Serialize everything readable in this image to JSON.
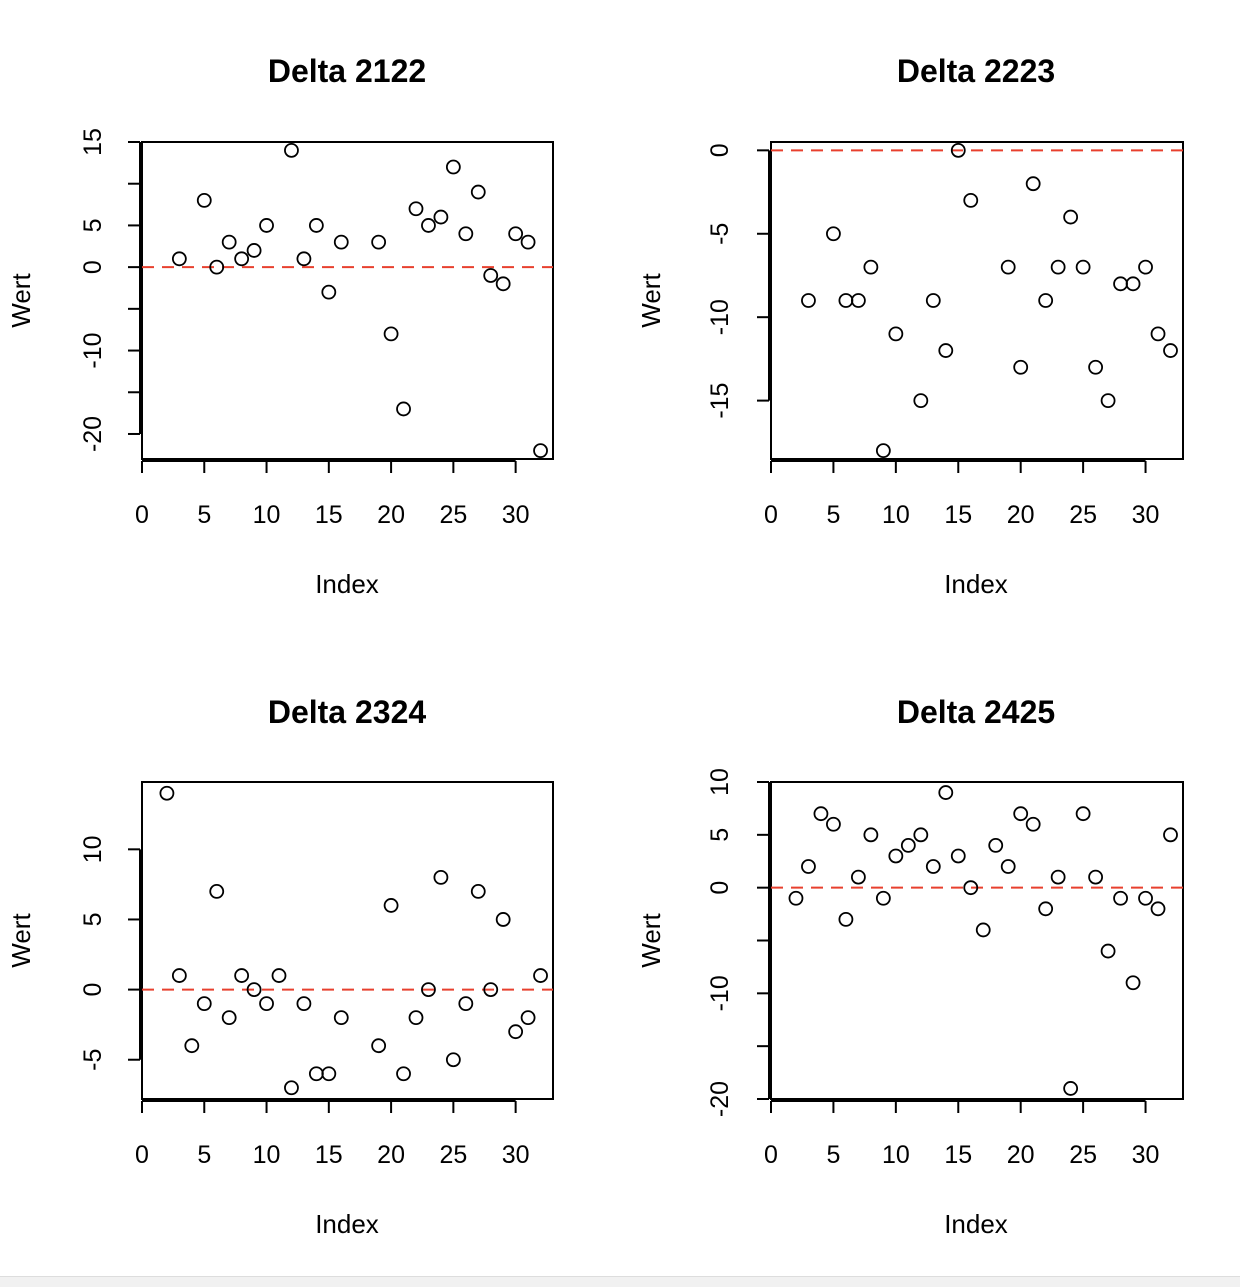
{
  "colors": {
    "point": "#000000",
    "reference_line": "#e8402e",
    "axis": "#000000",
    "background": "#ffffff"
  },
  "chart_data": [
    {
      "type": "scatter",
      "title": "Delta 2122",
      "xlabel": "Index",
      "ylabel": "Wert",
      "xlim": [
        0,
        33
      ],
      "ylim": [
        -23,
        15
      ],
      "xticks": [
        0,
        5,
        10,
        15,
        20,
        25,
        30
      ],
      "yticks": [
        -20,
        -15,
        -10,
        -5,
        0,
        5,
        10,
        15
      ],
      "ytick_labels": [
        "-20",
        "",
        "-10",
        "",
        "0",
        "5",
        "",
        "15"
      ],
      "reference_line": {
        "y": 0,
        "style": "dashed",
        "color": "#e8402e"
      },
      "x": [
        3,
        5,
        6,
        7,
        8,
        9,
        10,
        12,
        13,
        14,
        15,
        16,
        19,
        20,
        21,
        22,
        23,
        24,
        25,
        26,
        27,
        28,
        29,
        30,
        31,
        32
      ],
      "y": [
        1,
        8,
        0,
        3,
        1,
        2,
        5,
        14,
        1,
        5,
        -3,
        3,
        3,
        -8,
        -17,
        7,
        5,
        6,
        12,
        4,
        9,
        -1,
        -2,
        4,
        3,
        -22
      ]
    },
    {
      "type": "scatter",
      "title": "Delta 2223",
      "xlabel": "Index",
      "ylabel": "Wert",
      "xlim": [
        0,
        33
      ],
      "ylim": [
        -18.5,
        0.5
      ],
      "xticks": [
        0,
        5,
        10,
        15,
        20,
        25,
        30
      ],
      "yticks": [
        0,
        -5,
        -10,
        -15
      ],
      "ytick_labels": [
        "0",
        "-5",
        "-10",
        "-15"
      ],
      "reference_line": {
        "y": 0,
        "style": "dashed",
        "color": "#e8402e"
      },
      "x": [
        3,
        5,
        6,
        7,
        8,
        9,
        10,
        12,
        13,
        14,
        15,
        16,
        19,
        20,
        21,
        22,
        23,
        24,
        25,
        26,
        27,
        28,
        29,
        30,
        31,
        32
      ],
      "y": [
        -9,
        -5,
        -9,
        -9,
        -7,
        -18,
        -11,
        -15,
        -9,
        -12,
        0,
        -3,
        -7,
        -13,
        -2,
        -9,
        -7,
        -4,
        -7,
        -13,
        -15,
        -8,
        -8,
        -7,
        -11,
        -12
      ]
    },
    {
      "type": "scatter",
      "title": "Delta 2324",
      "xlabel": "Index",
      "ylabel": "Wert",
      "xlim": [
        0,
        33
      ],
      "ylim": [
        -7.8,
        14.8
      ],
      "xticks": [
        0,
        5,
        10,
        15,
        20,
        25,
        30
      ],
      "yticks": [
        -5,
        0,
        5,
        10
      ],
      "ytick_labels": [
        "-5",
        "0",
        "5",
        "10"
      ],
      "reference_line": {
        "y": 0,
        "style": "dashed",
        "color": "#e8402e"
      },
      "x": [
        2,
        3,
        4,
        5,
        6,
        7,
        8,
        9,
        10,
        11,
        12,
        13,
        14,
        15,
        16,
        19,
        20,
        21,
        22,
        23,
        24,
        25,
        26,
        27,
        28,
        29,
        30,
        31,
        32
      ],
      "y": [
        14,
        1,
        -4,
        -1,
        7,
        -2,
        1,
        0,
        -1,
        1,
        -7,
        -1,
        -6,
        -6,
        -2,
        -4,
        6,
        -6,
        -2,
        0,
        8,
        -5,
        -1,
        7,
        0,
        5,
        -3,
        -2,
        1
      ]
    },
    {
      "type": "scatter",
      "title": "Delta 2425",
      "xlabel": "Index",
      "ylabel": "Wert",
      "xlim": [
        0,
        33
      ],
      "ylim": [
        -20,
        10
      ],
      "xticks": [
        0,
        5,
        10,
        15,
        20,
        25,
        30
      ],
      "yticks": [
        -20,
        -15,
        -10,
        -5,
        0,
        5,
        10
      ],
      "ytick_labels": [
        "-20",
        "",
        "-10",
        "",
        "0",
        "5",
        "10"
      ],
      "reference_line": {
        "y": 0,
        "style": "dashed",
        "color": "#e8402e"
      },
      "x": [
        2,
        3,
        4,
        5,
        6,
        7,
        8,
        9,
        10,
        11,
        12,
        13,
        14,
        15,
        16,
        17,
        18,
        19,
        20,
        21,
        22,
        23,
        24,
        25,
        26,
        27,
        28,
        29,
        30,
        31,
        32
      ],
      "y": [
        -1,
        2,
        7,
        6,
        -3,
        1,
        5,
        -1,
        3,
        4,
        5,
        2,
        9,
        3,
        0,
        -4,
        4,
        2,
        7,
        6,
        -2,
        1,
        -19,
        7,
        1,
        -6,
        -1,
        -9,
        -1,
        -2,
        5
      ]
    }
  ]
}
